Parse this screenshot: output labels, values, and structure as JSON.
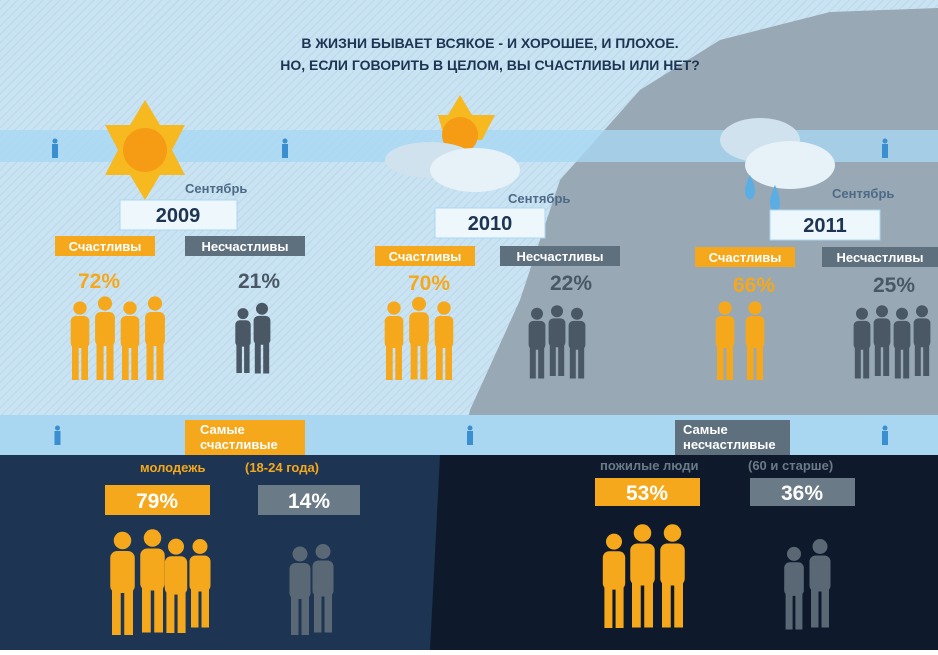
{
  "title": {
    "line1": "В ЖИЗНИ БЫВАЕТ ВСЯКОЕ - И ХОРОШЕЕ, И ПЛОХОЕ.",
    "line2": "НО, ЕСЛИ ГОВОРИТЬ В ЦЕЛОМ, ВЫ СЧАСТЛИВЫ ИЛИ НЕТ?"
  },
  "years": [
    {
      "month": "Сентябрь",
      "year": "2009",
      "happy_label": "Счастливы",
      "happy": "72%",
      "unhappy_label": "Несчастливы",
      "unhappy": "21%"
    },
    {
      "month": "Сентябрь",
      "year": "2010",
      "happy_label": "Счастливы",
      "happy": "70%",
      "unhappy_label": "Несчастливы",
      "unhappy": "22%"
    },
    {
      "month": "Сентябрь",
      "year": "2011",
      "happy_label": "Счастливы",
      "happy": "66%",
      "unhappy_label": "Несчастливы",
      "unhappy": "25%"
    }
  ],
  "groups": [
    {
      "tag": [
        "Самые",
        "счастливые"
      ],
      "group": "молодежь",
      "range": "(18-24 года)",
      "happy": "79%",
      "unhappy": "14%"
    },
    {
      "tag": [
        "Самые",
        "несчастливые"
      ],
      "group": "пожилые люди",
      "range": "(60 и старше)",
      "happy": "53%",
      "unhappy": "36%"
    }
  ]
}
